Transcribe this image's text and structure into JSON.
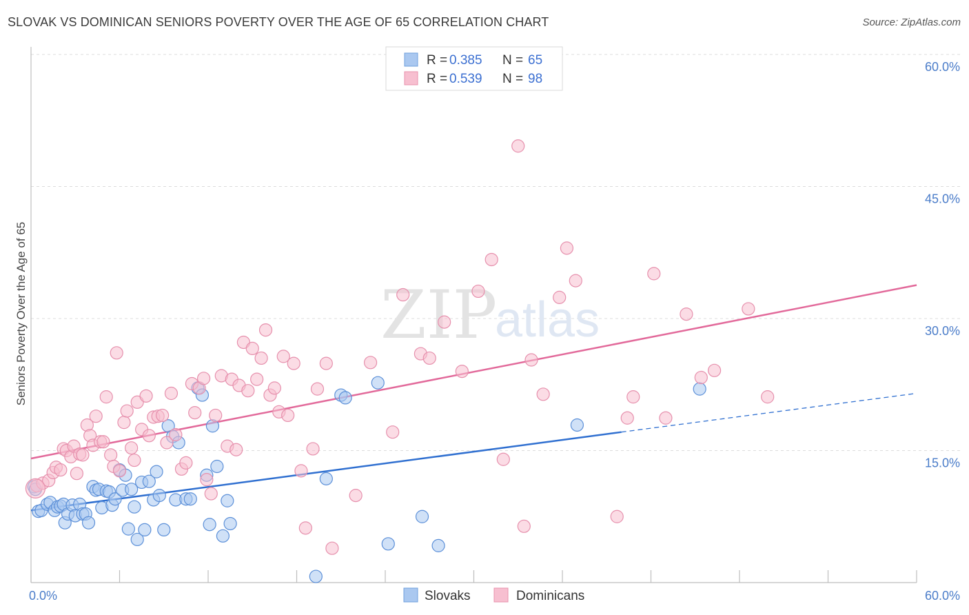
{
  "title": "SLOVAK VS DOMINICAN SENIORS POVERTY OVER THE AGE OF 65 CORRELATION CHART",
  "source": "Source: ZipAtlas.com",
  "watermark": {
    "zip": "ZIP",
    "atlas": "atlas"
  },
  "legend": {
    "r_label": "R =",
    "n_label": "N =",
    "rows": [
      {
        "r": "0.385",
        "n": "65",
        "fill": "#aac8f0",
        "stroke": "#6f9fdc"
      },
      {
        "r": "0.539",
        "n": "98",
        "fill": "#f7bfd0",
        "stroke": "#e890ad"
      }
    ]
  },
  "bottom_legend": [
    "Slovaks",
    "Dominicans"
  ],
  "chart_data": {
    "type": "scatter",
    "xlabel": "",
    "ylabel": "Seniors Poverty Over the Age of 65",
    "xlim": [
      0,
      60
    ],
    "ylim": [
      0,
      60
    ],
    "x_tick_labels": [
      "0.0%",
      "60.0%"
    ],
    "y_tick_labels": [
      "15.0%",
      "30.0%",
      "45.0%",
      "60.0%"
    ],
    "y_ticks": [
      15,
      30,
      45,
      60
    ],
    "grid": true,
    "series": [
      {
        "name": "Slovaks",
        "color": "#5b8fd8",
        "fill": "#aac8f0",
        "trend": {
          "x1": 0,
          "y1": 8.2,
          "x2": 40,
          "y2": 17.1,
          "dash_to_x": 60,
          "dash_to_y": 21.5,
          "color": "#2f6fd0"
        },
        "points": [
          [
            0.2,
            10.9
          ],
          [
            0.5,
            8.1
          ],
          [
            0.7,
            8.2
          ],
          [
            1.1,
            8.9
          ],
          [
            1.3,
            9.1
          ],
          [
            1.6,
            8.2
          ],
          [
            1.8,
            8.6
          ],
          [
            2.0,
            8.7
          ],
          [
            2.2,
            8.9
          ],
          [
            2.3,
            6.8
          ],
          [
            2.5,
            7.8
          ],
          [
            2.8,
            8.8
          ],
          [
            3.0,
            7.6
          ],
          [
            3.3,
            8.9
          ],
          [
            3.5,
            7.8
          ],
          [
            3.7,
            7.8
          ],
          [
            3.9,
            6.8
          ],
          [
            4.2,
            10.9
          ],
          [
            4.4,
            10.5
          ],
          [
            4.6,
            10.6
          ],
          [
            4.8,
            8.5
          ],
          [
            5.1,
            10.4
          ],
          [
            5.3,
            10.3
          ],
          [
            5.5,
            8.8
          ],
          [
            5.7,
            9.5
          ],
          [
            6.0,
            12.8
          ],
          [
            6.2,
            10.5
          ],
          [
            6.4,
            12.2
          ],
          [
            6.6,
            6.1
          ],
          [
            6.8,
            10.6
          ],
          [
            7.0,
            8.6
          ],
          [
            7.2,
            4.9
          ],
          [
            7.5,
            11.4
          ],
          [
            7.7,
            6.0
          ],
          [
            8.0,
            11.5
          ],
          [
            8.3,
            9.4
          ],
          [
            8.5,
            12.6
          ],
          [
            8.7,
            9.9
          ],
          [
            9.0,
            6.0
          ],
          [
            9.3,
            17.8
          ],
          [
            9.6,
            16.6
          ],
          [
            9.8,
            9.4
          ],
          [
            10.0,
            15.9
          ],
          [
            10.5,
            9.5
          ],
          [
            10.8,
            9.5
          ],
          [
            11.3,
            22.1
          ],
          [
            11.6,
            21.3
          ],
          [
            11.9,
            12.2
          ],
          [
            12.1,
            6.6
          ],
          [
            12.3,
            17.8
          ],
          [
            12.6,
            13.2
          ],
          [
            13.0,
            5.3
          ],
          [
            13.3,
            9.3
          ],
          [
            13.5,
            6.7
          ],
          [
            19.3,
            0.7
          ],
          [
            20.0,
            11.8
          ],
          [
            21.0,
            21.3
          ],
          [
            21.3,
            21.0
          ],
          [
            23.5,
            22.7
          ],
          [
            24.2,
            4.4
          ],
          [
            26.5,
            7.5
          ],
          [
            27.6,
            4.2
          ],
          [
            37.0,
            17.9
          ],
          [
            45.3,
            22.0
          ],
          [
            0.3,
            10.6
          ]
        ]
      },
      {
        "name": "Dominicans",
        "color": "#e68fac",
        "fill": "#f7bfd0",
        "trend": {
          "x1": 0,
          "y1": 14.1,
          "x2": 60,
          "y2": 33.8,
          "color": "#e2699a"
        },
        "points": [
          [
            0.4,
            11.0
          ],
          [
            0.8,
            11.3
          ],
          [
            1.2,
            11.6
          ],
          [
            1.5,
            12.5
          ],
          [
            1.7,
            13.1
          ],
          [
            2.0,
            12.8
          ],
          [
            2.2,
            15.2
          ],
          [
            2.4,
            15.0
          ],
          [
            2.7,
            14.3
          ],
          [
            2.9,
            15.5
          ],
          [
            3.1,
            12.4
          ],
          [
            3.3,
            14.6
          ],
          [
            3.5,
            14.5
          ],
          [
            3.8,
            17.9
          ],
          [
            4.0,
            16.7
          ],
          [
            4.2,
            15.6
          ],
          [
            4.4,
            18.9
          ],
          [
            4.7,
            16.0
          ],
          [
            4.9,
            16.0
          ],
          [
            5.1,
            21.1
          ],
          [
            5.4,
            14.5
          ],
          [
            5.6,
            13.2
          ],
          [
            5.8,
            26.1
          ],
          [
            6.0,
            12.7
          ],
          [
            6.3,
            18.2
          ],
          [
            6.5,
            19.5
          ],
          [
            6.8,
            15.3
          ],
          [
            7.0,
            13.9
          ],
          [
            7.2,
            20.5
          ],
          [
            7.5,
            17.4
          ],
          [
            7.8,
            21.2
          ],
          [
            8.0,
            16.7
          ],
          [
            8.3,
            18.8
          ],
          [
            8.6,
            18.9
          ],
          [
            8.9,
            19.0
          ],
          [
            9.2,
            15.9
          ],
          [
            9.5,
            21.5
          ],
          [
            9.8,
            16.8
          ],
          [
            10.2,
            12.9
          ],
          [
            10.5,
            13.6
          ],
          [
            10.9,
            22.6
          ],
          [
            11.1,
            19.3
          ],
          [
            11.4,
            22.1
          ],
          [
            11.7,
            23.2
          ],
          [
            11.9,
            11.7
          ],
          [
            12.2,
            10.1
          ],
          [
            12.5,
            19.0
          ],
          [
            12.9,
            23.5
          ],
          [
            13.3,
            15.5
          ],
          [
            13.6,
            23.1
          ],
          [
            13.9,
            15.1
          ],
          [
            14.1,
            22.4
          ],
          [
            14.4,
            27.3
          ],
          [
            14.7,
            21.8
          ],
          [
            15.0,
            26.6
          ],
          [
            15.3,
            23.1
          ],
          [
            15.6,
            25.5
          ],
          [
            15.9,
            28.7
          ],
          [
            16.2,
            21.3
          ],
          [
            16.5,
            22.1
          ],
          [
            16.8,
            19.4
          ],
          [
            17.1,
            25.7
          ],
          [
            17.4,
            19.0
          ],
          [
            17.8,
            24.9
          ],
          [
            18.3,
            12.7
          ],
          [
            18.6,
            6.2
          ],
          [
            19.1,
            15.2
          ],
          [
            19.4,
            22.0
          ],
          [
            20.0,
            24.9
          ],
          [
            20.4,
            3.9
          ],
          [
            22.0,
            9.9
          ],
          [
            23.0,
            25.0
          ],
          [
            24.5,
            17.1
          ],
          [
            25.2,
            32.7
          ],
          [
            26.4,
            26.0
          ],
          [
            27.0,
            25.5
          ],
          [
            28.0,
            29.6
          ],
          [
            29.2,
            24.0
          ],
          [
            30.3,
            33.1
          ],
          [
            31.2,
            36.7
          ],
          [
            32.0,
            14.0
          ],
          [
            33.0,
            49.6
          ],
          [
            33.4,
            6.4
          ],
          [
            33.9,
            25.3
          ],
          [
            34.7,
            21.4
          ],
          [
            35.8,
            32.4
          ],
          [
            36.3,
            38.0
          ],
          [
            36.9,
            34.3
          ],
          [
            39.7,
            7.5
          ],
          [
            40.4,
            18.7
          ],
          [
            40.8,
            21.1
          ],
          [
            42.2,
            35.1
          ],
          [
            43.0,
            18.7
          ],
          [
            44.4,
            30.5
          ],
          [
            45.4,
            23.3
          ],
          [
            46.3,
            24.1
          ],
          [
            48.6,
            31.1
          ],
          [
            49.9,
            21.1
          ]
        ]
      }
    ]
  }
}
